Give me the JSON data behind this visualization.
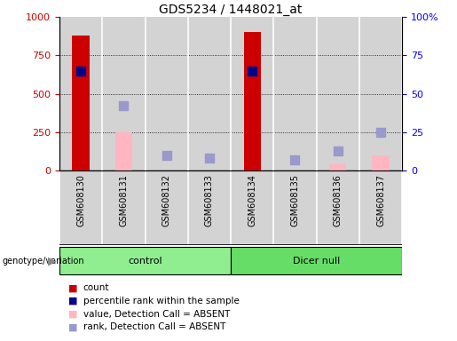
{
  "title": "GDS5234 / 1448021_at",
  "samples": [
    "GSM608130",
    "GSM608131",
    "GSM608132",
    "GSM608133",
    "GSM608134",
    "GSM608135",
    "GSM608136",
    "GSM608137"
  ],
  "groups": [
    {
      "label": "control",
      "samples": [
        0,
        1,
        2,
        3
      ],
      "color": "#90ee90"
    },
    {
      "label": "Dicer null",
      "samples": [
        4,
        5,
        6,
        7
      ],
      "color": "#66dd66"
    }
  ],
  "count": [
    880,
    null,
    null,
    null,
    900,
    null,
    null,
    null
  ],
  "percentile_rank": [
    65,
    null,
    null,
    null,
    65,
    null,
    null,
    null
  ],
  "value_absent": [
    null,
    250,
    null,
    null,
    null,
    null,
    40,
    100
  ],
  "rank_absent": [
    null,
    42,
    10,
    8,
    null,
    7,
    13,
    25
  ],
  "ylim_left": [
    0,
    1000
  ],
  "ylim_right": [
    0,
    100
  ],
  "yticks_left": [
    0,
    250,
    500,
    750,
    1000
  ],
  "yticks_right": [
    0,
    25,
    50,
    75,
    100
  ],
  "ytick_right_labels": [
    "0",
    "25",
    "50",
    "75",
    "100%"
  ],
  "count_color": "#cc0000",
  "percentile_color": "#00008b",
  "value_absent_color": "#ffb6c1",
  "rank_absent_color": "#9999cc",
  "bg_color": "#d3d3d3",
  "legend_items": [
    {
      "label": "count",
      "color": "#cc0000"
    },
    {
      "label": "percentile rank within the sample",
      "color": "#00008b"
    },
    {
      "label": "value, Detection Call = ABSENT",
      "color": "#ffb6c1"
    },
    {
      "label": "rank, Detection Call = ABSENT",
      "color": "#9999cc"
    }
  ]
}
